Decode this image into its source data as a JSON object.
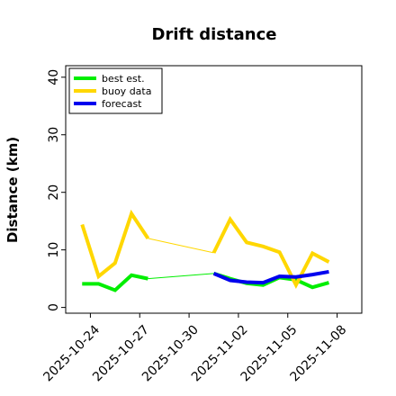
{
  "chart_data": {
    "type": "line",
    "title": "Drift distance",
    "xlabel": "",
    "ylabel": "Distance (km)",
    "ylim": [
      -1,
      42
    ],
    "yticks": [
      0,
      10,
      20,
      30,
      40
    ],
    "xlim": [
      "2025-10-22T12:00",
      "2025-11-09T12:00"
    ],
    "xticks": [
      "2025-10-24",
      "2025-10-27",
      "2025-10-30",
      "2025-11-02",
      "2025-11-05",
      "2025-11-08"
    ],
    "highlight_tick": "2025-10-30",
    "highlight_color": "#1a7f1a",
    "legend_position": "top-left",
    "grid": false,
    "series": [
      {
        "name": "best est.",
        "color": "#00ee00",
        "points": [
          [
            "2025-10-23T12:00",
            4.1
          ],
          [
            "2025-10-24T12:00",
            4.1
          ],
          [
            "2025-10-25T12:00",
            3.0
          ],
          [
            "2025-10-26T12:00",
            5.6
          ],
          [
            "2025-10-27T12:00",
            5.0
          ],
          [
            "2025-10-31T12:00",
            5.9
          ],
          [
            "2025-11-01T12:00",
            5.0
          ],
          [
            "2025-11-02T12:00",
            4.2
          ],
          [
            "2025-11-03T12:00",
            3.9
          ],
          [
            "2025-11-04T12:00",
            5.2
          ],
          [
            "2025-11-05T12:00",
            4.8
          ],
          [
            "2025-11-06T12:00",
            3.5
          ],
          [
            "2025-11-07T12:00",
            4.3
          ]
        ]
      },
      {
        "name": "buoy data",
        "color": "#ffd700",
        "points": [
          [
            "2025-10-23T12:00",
            14.4
          ],
          [
            "2025-10-24T12:00",
            5.4
          ],
          [
            "2025-10-25T12:00",
            7.7
          ],
          [
            "2025-10-26T12:00",
            16.3
          ],
          [
            "2025-10-27T12:00",
            12.0
          ],
          [
            "2025-10-31T12:00",
            9.5
          ],
          [
            "2025-11-01T12:00",
            15.3
          ],
          [
            "2025-11-02T12:00",
            11.3
          ],
          [
            "2025-11-03T12:00",
            10.6
          ],
          [
            "2025-11-04T12:00",
            9.6
          ],
          [
            "2025-11-05T12:00",
            3.9
          ],
          [
            "2025-11-06T12:00",
            9.4
          ],
          [
            "2025-11-07T12:00",
            7.9
          ]
        ]
      },
      {
        "name": "forecast",
        "color": "#0000ee",
        "points": [
          [
            "2025-10-31T12:00",
            5.9
          ],
          [
            "2025-11-01T12:00",
            4.7
          ],
          [
            "2025-11-02T12:00",
            4.4
          ],
          [
            "2025-11-03T12:00",
            4.3
          ],
          [
            "2025-11-04T12:00",
            5.4
          ],
          [
            "2025-11-05T12:00",
            5.3
          ],
          [
            "2025-11-06T12:00",
            5.7
          ],
          [
            "2025-11-07T12:00",
            6.2
          ]
        ]
      }
    ]
  }
}
